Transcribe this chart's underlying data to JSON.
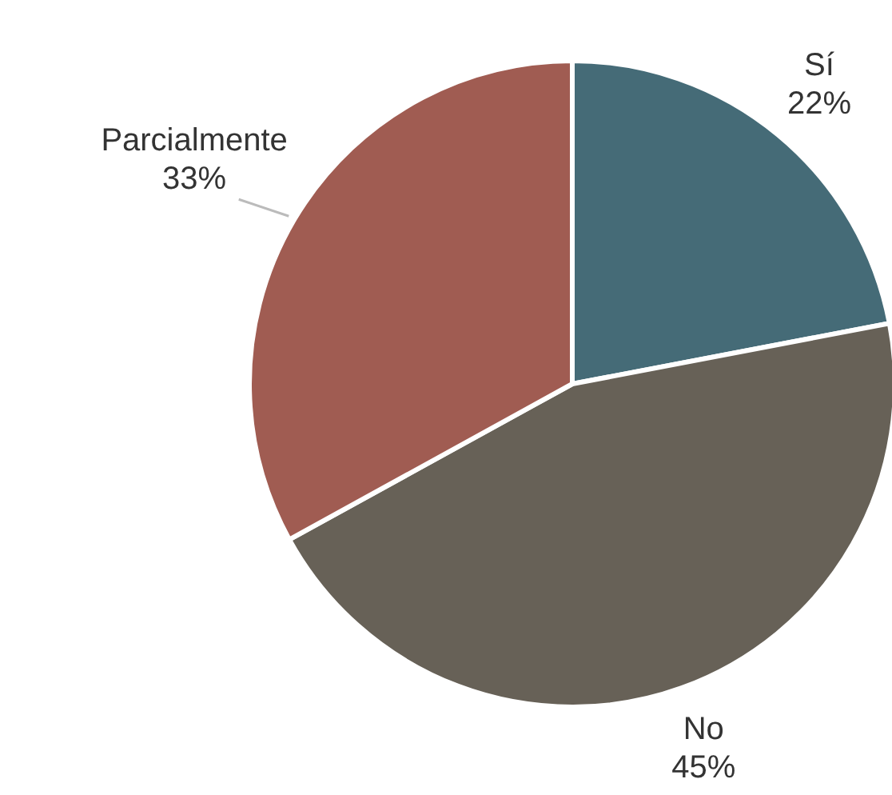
{
  "chart_data": {
    "type": "pie",
    "categories": [
      "Sí",
      "No",
      "Parcialmente"
    ],
    "values": [
      22,
      45,
      33
    ],
    "colors": [
      "#456b77",
      "#676157",
      "#a05c52"
    ],
    "value_labels": [
      "22%",
      "45%",
      "33%"
    ]
  }
}
